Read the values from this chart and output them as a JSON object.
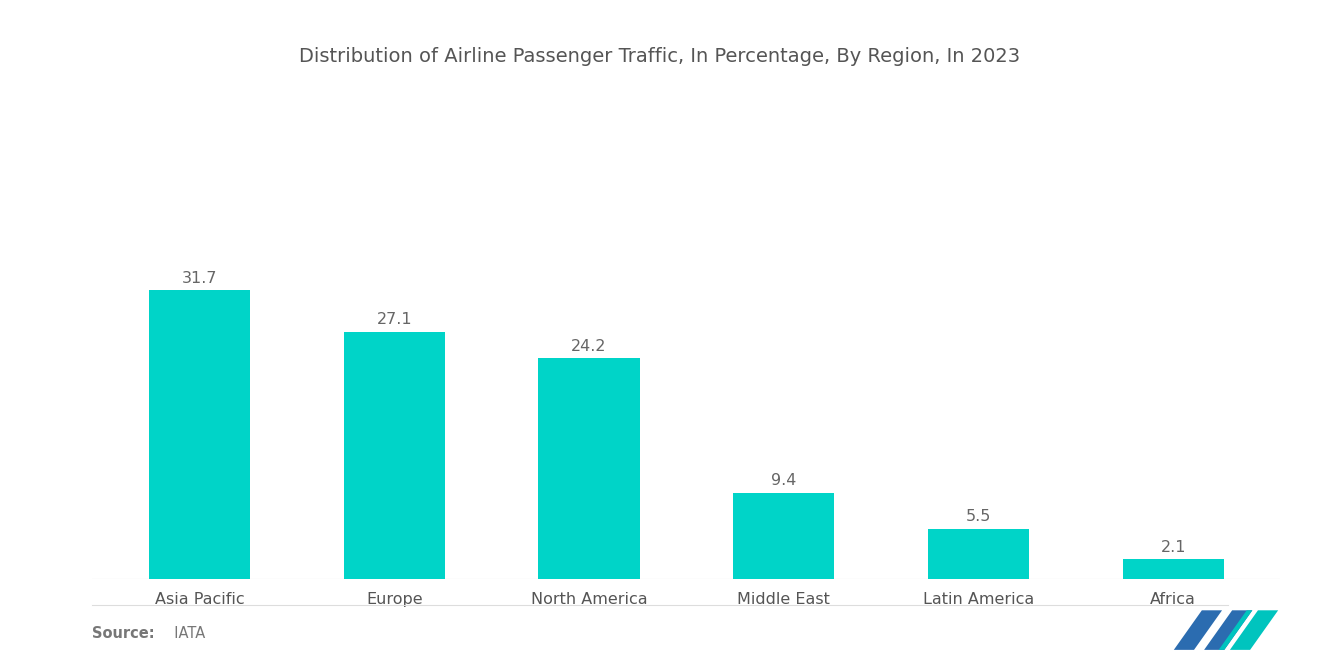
{
  "title": "Distribution of Airline Passenger Traffic, In Percentage, By Region, In 2023",
  "categories": [
    "Asia Pacific",
    "Europe",
    "North America",
    "Middle East",
    "Latin America",
    "Africa"
  ],
  "values": [
    31.7,
    27.1,
    24.2,
    9.4,
    5.5,
    2.1
  ],
  "bar_color": "#00D4C8",
  "background_color": "#ffffff",
  "title_fontsize": 14,
  "label_fontsize": 11.5,
  "value_fontsize": 11.5,
  "source_text_bold": "Source:",
  "source_text_light": "  IATA",
  "ylim": [
    0,
    38
  ],
  "title_color": "#555555",
  "label_color": "#555555",
  "value_color": "#666666",
  "source_color": "#777777",
  "logo_blue": "#2B6CB0",
  "logo_teal": "#00C4BE"
}
